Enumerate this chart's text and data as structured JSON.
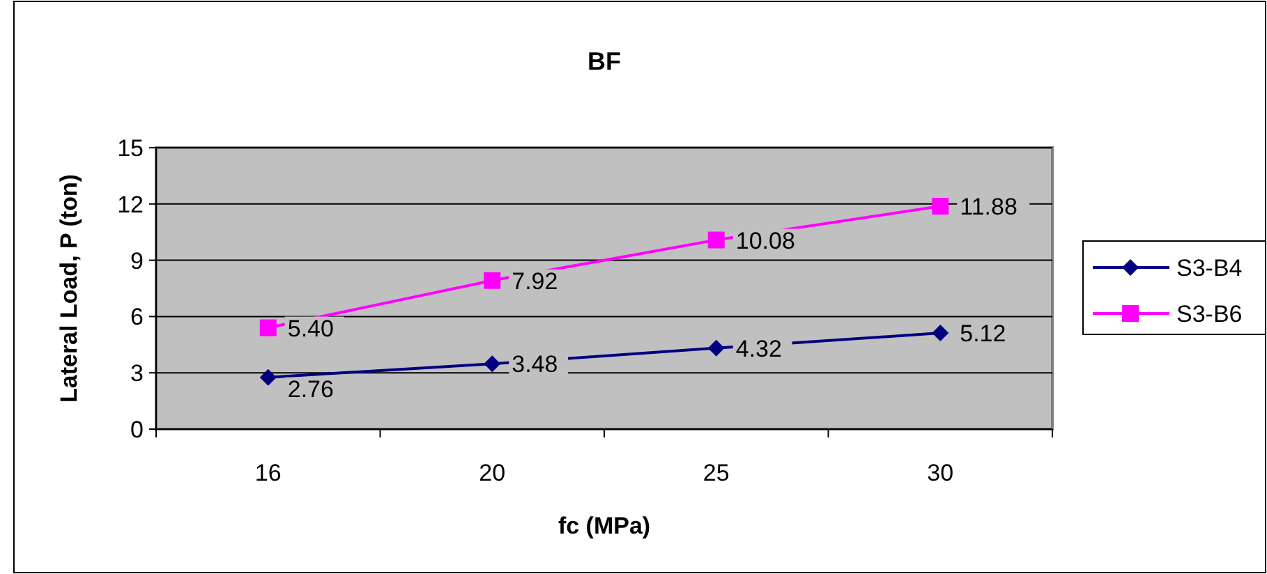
{
  "chart_data": {
    "type": "line",
    "title": "BF",
    "xlabel": "fc (MPa)",
    "ylabel": "Lateral Load, P (ton)",
    "categories": [
      "16",
      "20",
      "25",
      "30"
    ],
    "series": [
      {
        "name": "S3-B4",
        "color": "#000080",
        "marker": "diamond",
        "values": [
          2.76,
          3.48,
          4.32,
          5.12
        ]
      },
      {
        "name": "S3-B6",
        "color": "#ff00ff",
        "marker": "square",
        "values": [
          5.4,
          7.92,
          10.08,
          11.88
        ]
      }
    ],
    "value_labels": [
      [
        "2.76",
        "3.48",
        "4.32",
        "5.12"
      ],
      [
        "5.40",
        "7.92",
        "10.08",
        "11.88"
      ]
    ],
    "ylim": [
      0,
      15
    ],
    "yticks": [
      0,
      3,
      6,
      9,
      12,
      15
    ],
    "grid": "y",
    "legend": "right"
  }
}
